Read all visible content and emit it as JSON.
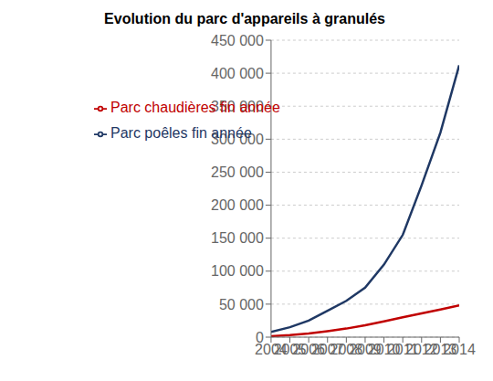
{
  "chart_data": {
    "type": "line",
    "title": "Evolution du parc d'appareils à granulés",
    "x": [
      2004,
      2005,
      2006,
      2007,
      2008,
      2009,
      2010,
      2011,
      2012,
      2013,
      2014
    ],
    "series": [
      {
        "name": "Parc poêles fin année",
        "color": "#1F3864",
        "values": [
          8000,
          15000,
          25000,
          40000,
          55000,
          75000,
          110000,
          155000,
          230000,
          310000,
          412000
        ]
      },
      {
        "name": "Parc chaudières fin année",
        "color": "#C00000",
        "values": [
          1500,
          3000,
          5500,
          9000,
          13000,
          18000,
          24000,
          30000,
          36000,
          42000,
          48000
        ]
      }
    ],
    "xlim": [
      2004,
      2014
    ],
    "xticks": [
      2004,
      2005,
      2006,
      2007,
      2008,
      2009,
      2010,
      2011,
      2012,
      2013,
      2014
    ],
    "ylim": [
      0,
      450000
    ],
    "yticks": [
      0,
      {
        "value": 50000,
        "label": "50 000"
      },
      {
        "value": 100000,
        "label": "100 000"
      },
      {
        "value": 150000,
        "label": "150 000"
      },
      {
        "value": 200000,
        "label": "200 000"
      },
      {
        "value": 250000,
        "label": "250 000"
      },
      {
        "value": 300000,
        "label": "300 000"
      },
      {
        "value": 350000,
        "label": "350 000"
      },
      {
        "value": 400000,
        "label": "400 000"
      },
      {
        "value": 450000,
        "label": "450 000"
      }
    ],
    "grid": true,
    "legend": "upper left"
  }
}
